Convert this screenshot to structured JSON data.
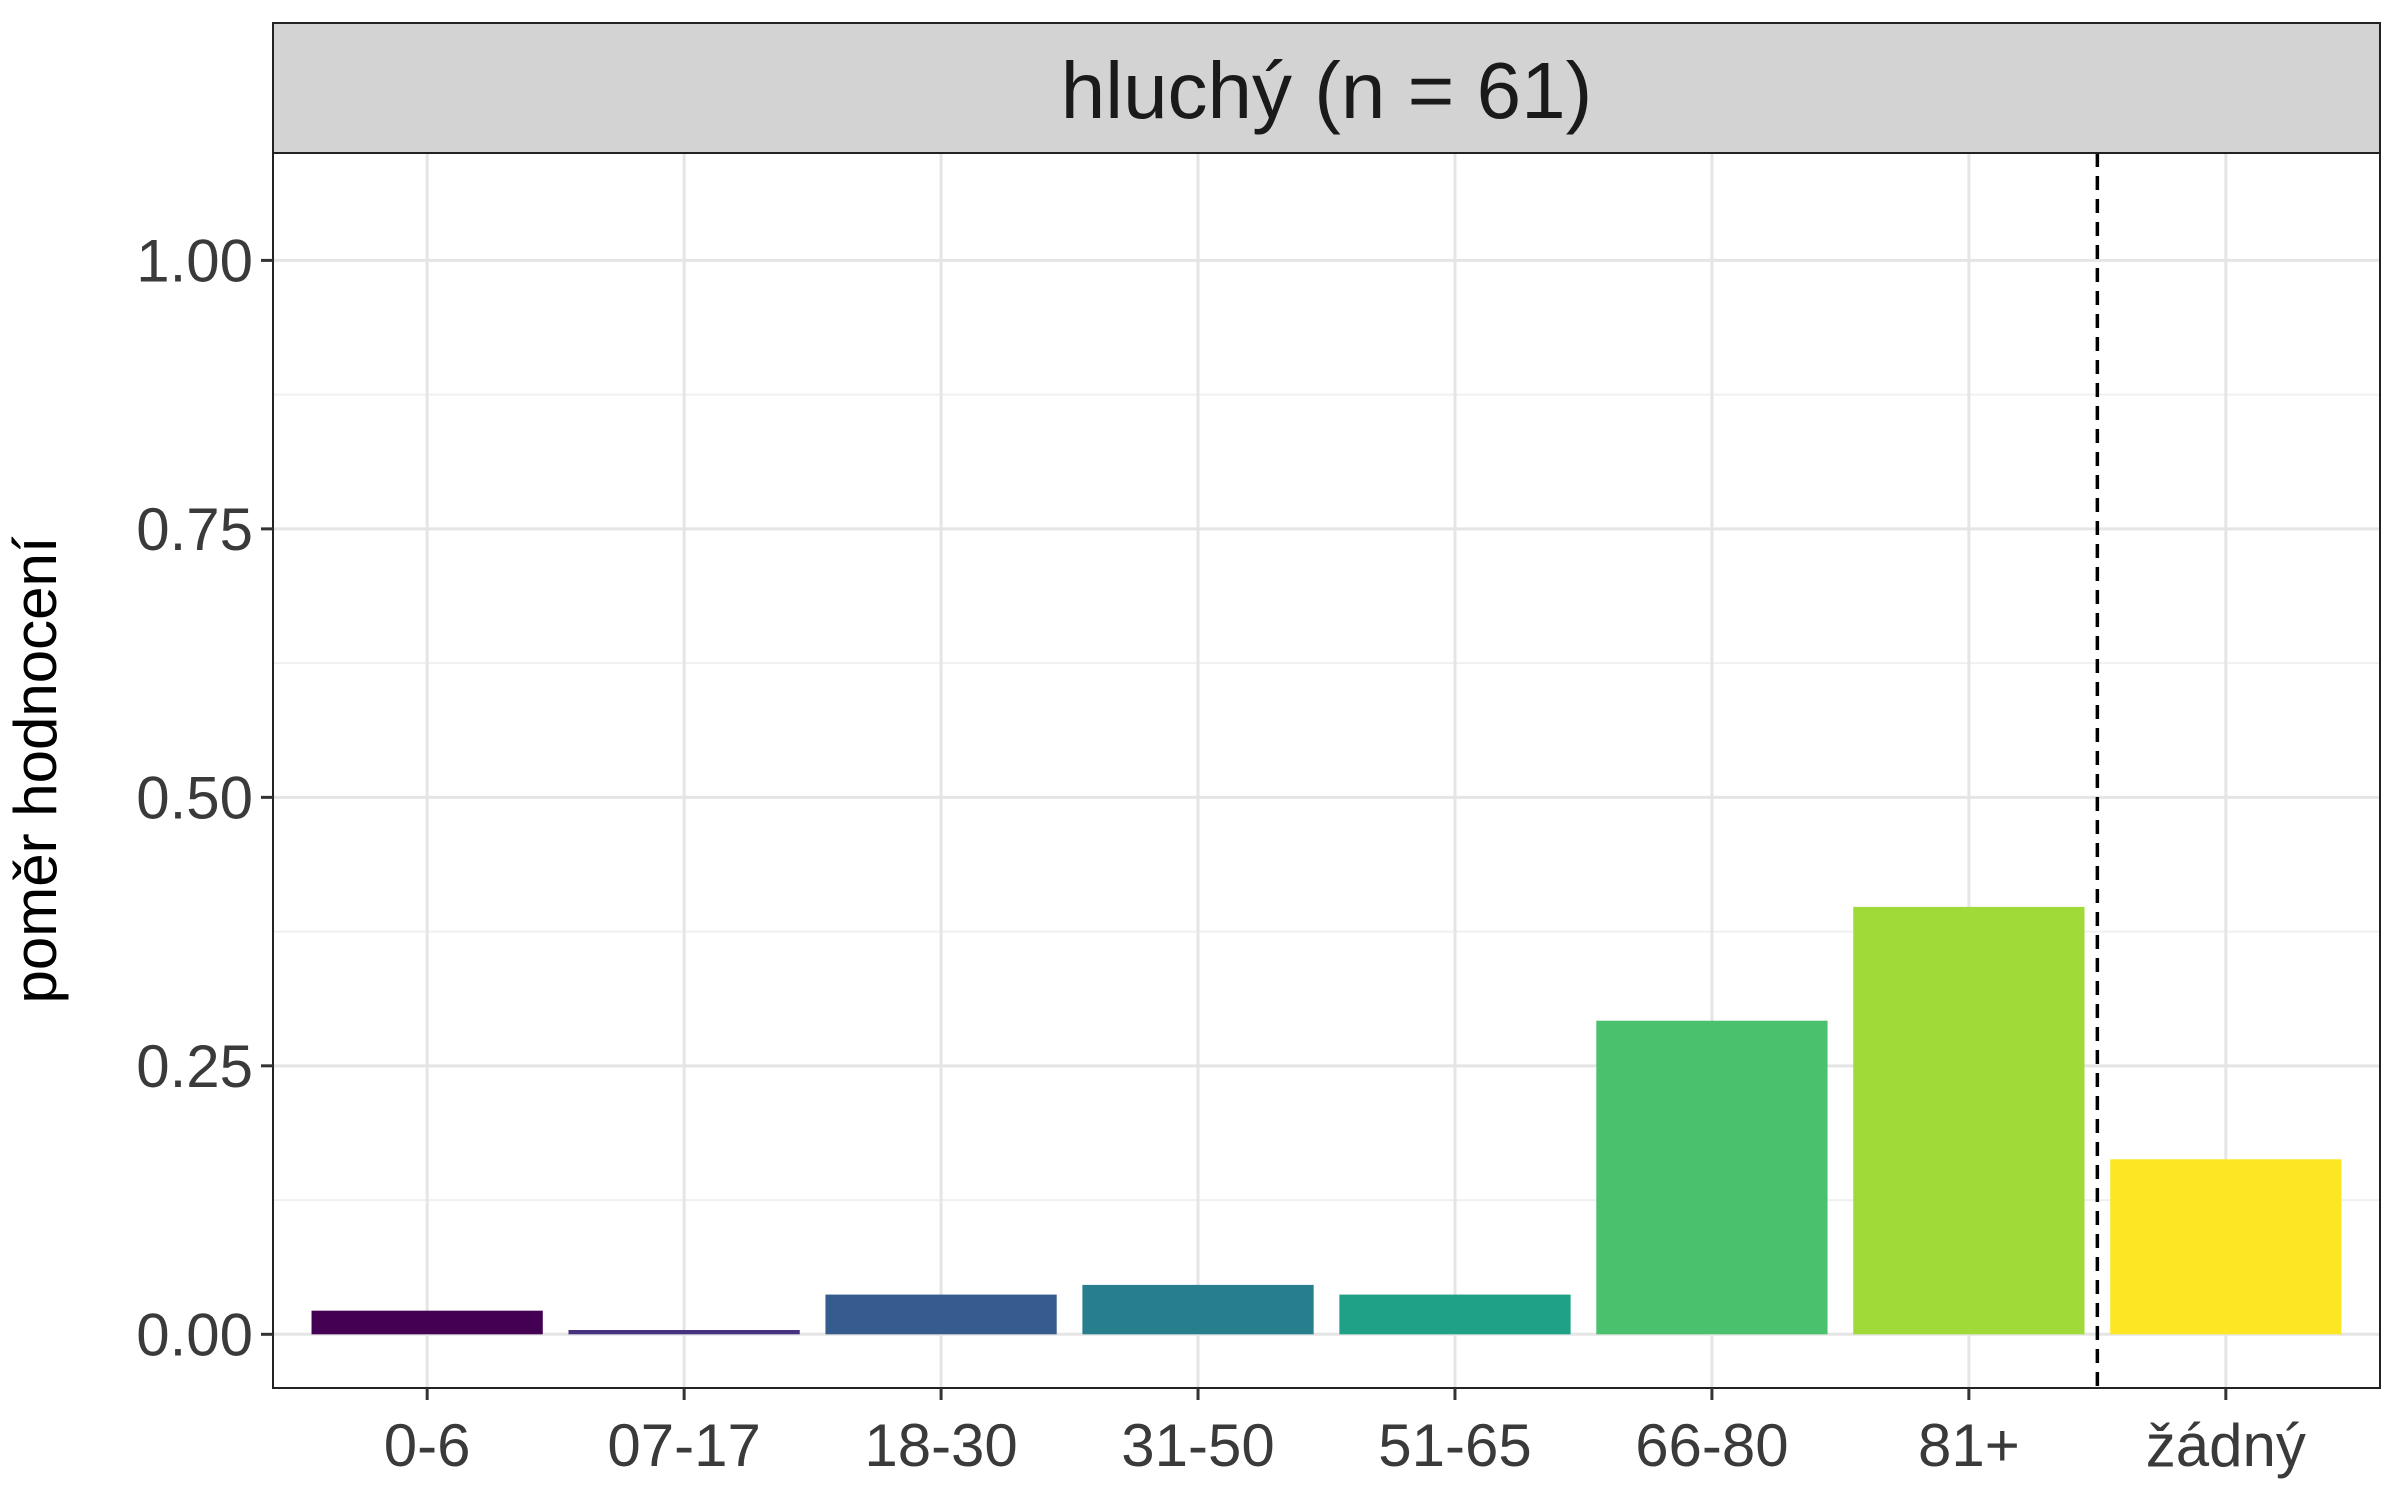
{
  "chart_data": {
    "type": "bar",
    "facet_title": "hluchý (n = 61)",
    "ylabel": "poměr hodnocení",
    "xlabel": "",
    "categories": [
      "0-6",
      "07-17",
      "18-30",
      "31-50",
      "51-65",
      "66-80",
      "81+",
      "žádný"
    ],
    "values": [
      0.022,
      0.004,
      0.037,
      0.046,
      0.037,
      0.292,
      0.398,
      0.163
    ],
    "ylim": [
      -0.05,
      1.1
    ],
    "yticks": [
      0,
      0.25,
      0.5,
      0.75,
      1
    ],
    "ytick_labels": [
      "0.00",
      "0.25",
      "0.50",
      "0.75",
      "1.00"
    ],
    "reference_line": {
      "between": [
        "81+",
        "žádný"
      ],
      "style": "dashed"
    },
    "grid": true,
    "legend": "none",
    "colors": [
      "#440154",
      "#46327e",
      "#365c8d",
      "#277f8e",
      "#1fa187",
      "#4ac16d",
      "#a0da39",
      "#fde725"
    ]
  }
}
